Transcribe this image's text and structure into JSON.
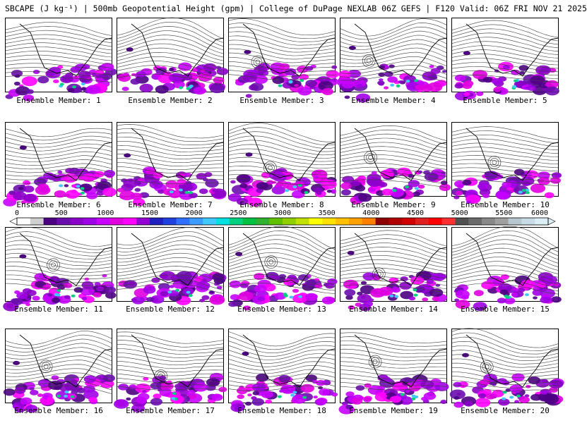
{
  "header": {
    "title": "SBCAPE (J kg⁻¹) | 500mb Geopotential Height (gpm) | College of DuPage NEXLAB 06Z GEFS | F120 Valid: 06Z FRI NOV 21 2025"
  },
  "colorbar": {
    "ticks": [
      "0",
      "500",
      "1000",
      "1500",
      "2000",
      "2500",
      "3000",
      "3500",
      "4000",
      "4500",
      "5000",
      "5500",
      "6000"
    ],
    "colors": [
      "#ffffff",
      "#cfcfcf",
      "#4b0082",
      "#6a0dad",
      "#8b00c8",
      "#a000e6",
      "#c800ff",
      "#e000e0",
      "#ff00ff",
      "#9400d3",
      "#2020c0",
      "#2040e0",
      "#3070ff",
      "#3c9bff",
      "#40c8ff",
      "#00e0e0",
      "#00d080",
      "#00c040",
      "#30b030",
      "#60c000",
      "#90d000",
      "#c0e000",
      "#ffff00",
      "#ffe000",
      "#ffc000",
      "#ffa000",
      "#ff8000",
      "#8b0000",
      "#b00000",
      "#d00000",
      "#e02020",
      "#ff0000",
      "#ff3030",
      "#505050",
      "#6a6a6a",
      "#888888",
      "#a0a0a0",
      "#b8c8d0",
      "#c8dce8",
      "#dbeef5"
    ]
  },
  "panels": [
    {
      "label": "Ensemble Member: 1"
    },
    {
      "label": "Ensemble Member: 2"
    },
    {
      "label": "Ensemble Member: 3"
    },
    {
      "label": "Ensemble Member: 4"
    },
    {
      "label": "Ensemble Member: 5"
    },
    {
      "label": "Ensemble Member: 6"
    },
    {
      "label": "Ensemble Member: 7"
    },
    {
      "label": "Ensemble Member: 8"
    },
    {
      "label": "Ensemble Member: 9"
    },
    {
      "label": "Ensemble Member: 10"
    },
    {
      "label": "Ensemble Member: 11"
    },
    {
      "label": "Ensemble Member: 12"
    },
    {
      "label": "Ensemble Member: 13"
    },
    {
      "label": "Ensemble Member: 14"
    },
    {
      "label": "Ensemble Member: 15"
    },
    {
      "label": "Ensemble Member: 16"
    },
    {
      "label": "Ensemble Member: 17"
    },
    {
      "label": "Ensemble Member: 18"
    },
    {
      "label": "Ensemble Member: 19"
    },
    {
      "label": "Ensemble Member: 20"
    }
  ]
}
